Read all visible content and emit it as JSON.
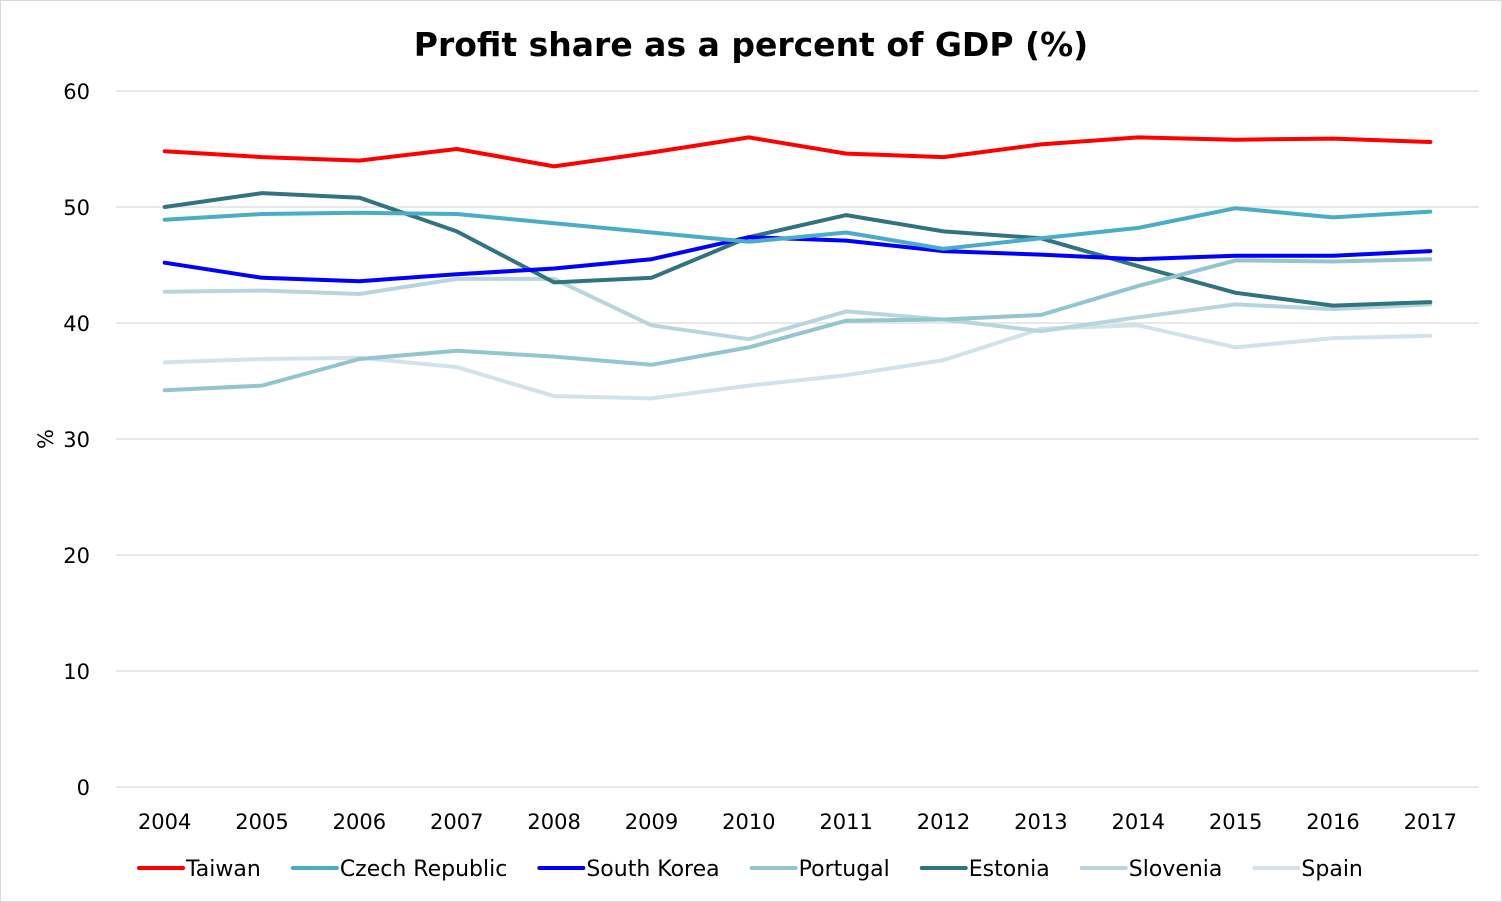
{
  "chart_data": {
    "type": "line",
    "title": "Profit share as a percent of GDP (%)",
    "xlabel": "",
    "ylabel": "%",
    "ylim": [
      0,
      60
    ],
    "yticks": [
      "0",
      "10",
      "20",
      "30",
      "40",
      "50",
      "60"
    ],
    "categories": [
      "2004",
      "2005",
      "2006",
      "2007",
      "2008",
      "2009",
      "2010",
      "2011",
      "2012",
      "2013",
      "2014",
      "2015",
      "2016",
      "2017"
    ],
    "grid": true,
    "legend_position": "bottom",
    "series": [
      {
        "name": "Taiwan",
        "color": "#ff0000",
        "values": [
          54.8,
          54.3,
          54.0,
          55.0,
          53.5,
          54.7,
          56.0,
          54.6,
          54.3,
          55.4,
          56.0,
          55.8,
          55.9,
          55.6
        ]
      },
      {
        "name": "Czech Republic",
        "color": "#4bacc6",
        "values": [
          48.9,
          49.4,
          49.5,
          49.4,
          48.6,
          47.8,
          47.0,
          47.8,
          46.4,
          47.3,
          48.2,
          49.9,
          49.1,
          49.6
        ]
      },
      {
        "name": "South Korea",
        "color": "#0000ff",
        "values": [
          45.2,
          43.9,
          43.6,
          44.2,
          44.7,
          45.5,
          47.4,
          47.1,
          46.2,
          45.9,
          45.5,
          45.8,
          45.8,
          46.2
        ]
      },
      {
        "name": "Portugal",
        "color": "#93c5cf",
        "values": [
          34.2,
          34.6,
          36.9,
          37.6,
          37.1,
          36.4,
          37.9,
          40.2,
          40.3,
          40.7,
          43.2,
          45.4,
          45.3,
          45.5
        ]
      },
      {
        "name": "Estonia",
        "color": "#31737f",
        "values": [
          50.0,
          51.2,
          50.8,
          47.9,
          43.5,
          43.9,
          47.4,
          49.3,
          47.9,
          47.3,
          44.9,
          42.6,
          41.5,
          41.8
        ]
      },
      {
        "name": "Slovenia",
        "color": "#b7d5dd",
        "values": [
          42.7,
          42.8,
          42.5,
          43.8,
          43.8,
          39.8,
          38.6,
          41.0,
          40.3,
          39.3,
          40.5,
          41.6,
          41.2,
          41.6
        ]
      },
      {
        "name": "Spain",
        "color": "#d1e2ea",
        "values": [
          36.6,
          36.9,
          37.0,
          36.2,
          33.7,
          33.5,
          34.6,
          35.5,
          36.8,
          39.5,
          39.8,
          37.9,
          38.7,
          38.9
        ]
      }
    ]
  }
}
